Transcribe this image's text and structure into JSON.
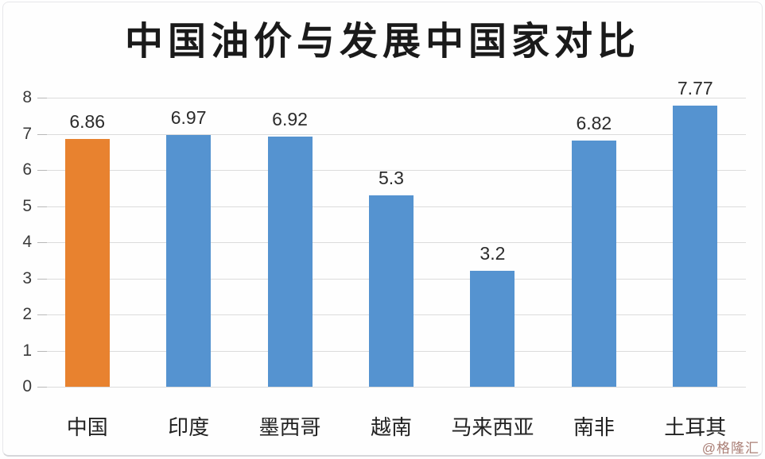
{
  "title": "中国油价与发展中国家对比",
  "watermark": "@格隆汇",
  "colors": {
    "bar": "#5593d0",
    "highlight": "#e8822f",
    "grid": "#dcdcdc",
    "tick": "#b8b8b8",
    "axis_text": "#3a3a3a",
    "label_text": "#2b2b2b",
    "watermark": "#aa7f76"
  },
  "chart_data": {
    "type": "bar",
    "title": "中国油价与发展中国家对比",
    "categories": [
      "中国",
      "印度",
      "墨西哥",
      "越南",
      "马来西亚",
      "南非",
      "土耳其"
    ],
    "values": [
      6.86,
      6.97,
      6.92,
      5.3,
      3.2,
      6.82,
      7.77
    ],
    "data_labels": [
      "6.86",
      "6.97",
      "6.92",
      "5.3",
      "3.2",
      "6.82",
      "7.77"
    ],
    "highlight_index": 0,
    "highlight_category": "中国",
    "y_ticks": [
      0,
      1,
      2,
      3,
      4,
      5,
      6,
      7,
      8
    ],
    "ylim": [
      0,
      8
    ],
    "xlabel": "",
    "ylabel": "",
    "grid": true,
    "legend": false
  }
}
